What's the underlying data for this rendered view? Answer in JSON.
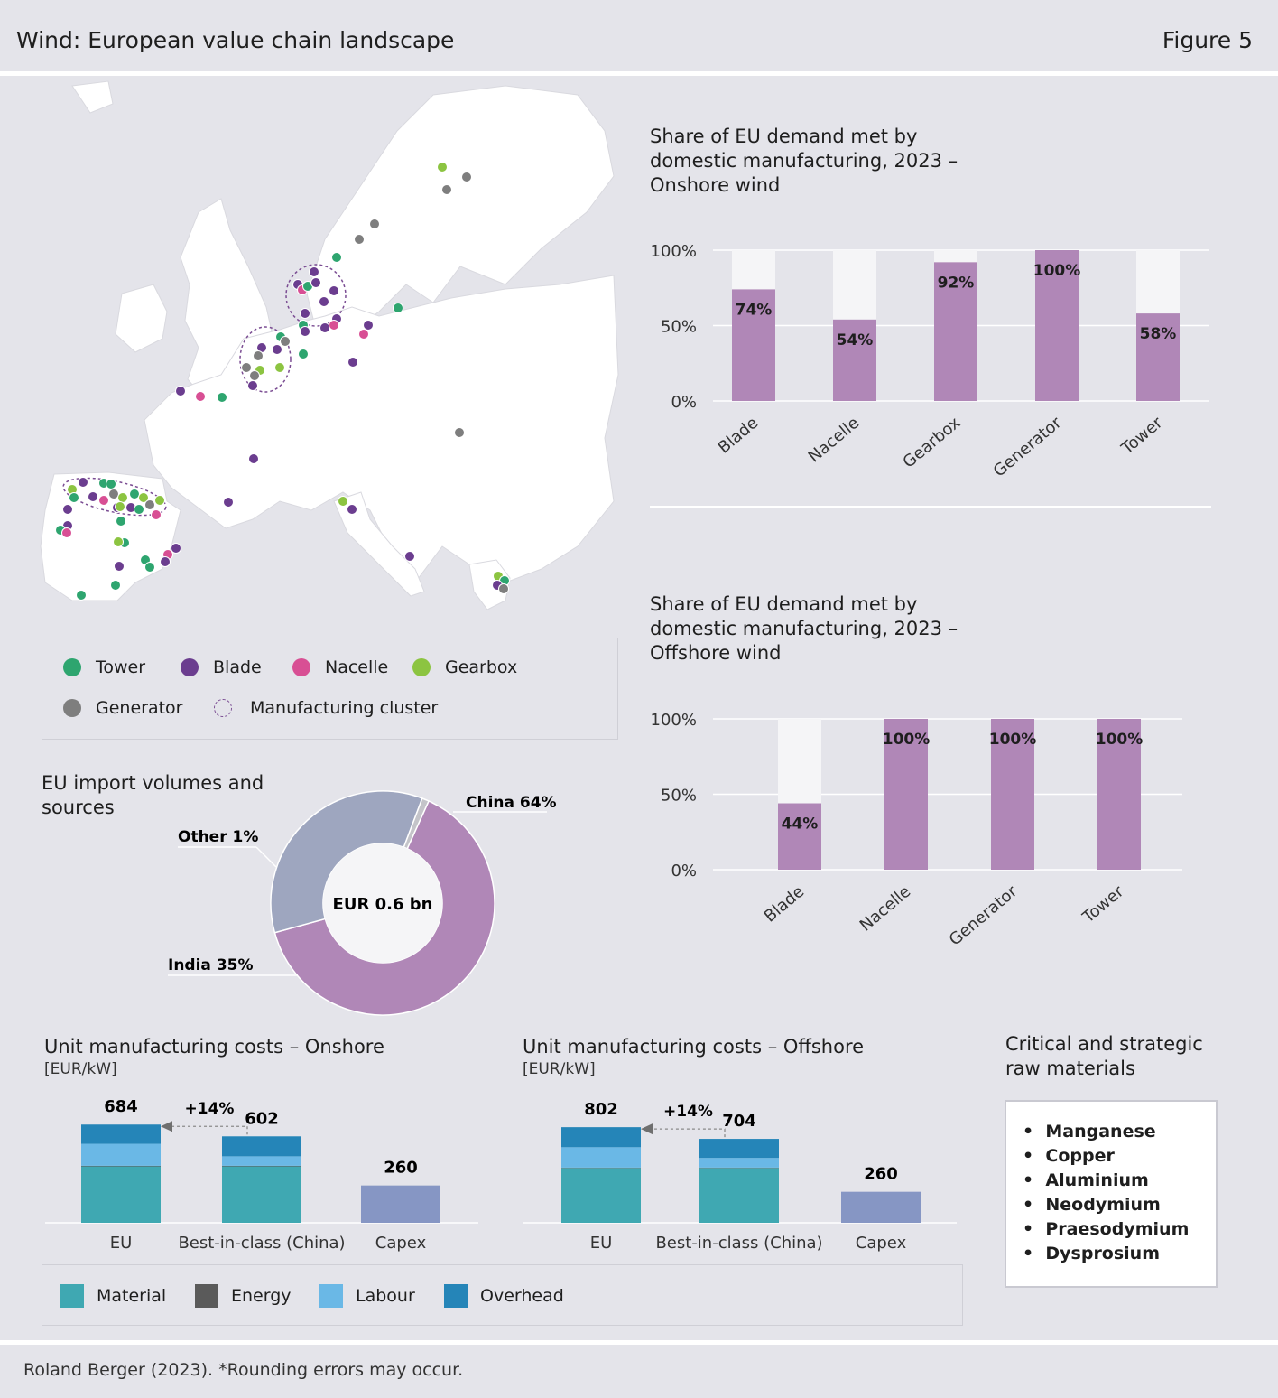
{
  "header": {
    "title": "Wind: European value chain landscape",
    "figure": "Figure 5"
  },
  "map_legend": {
    "tower": "Tower",
    "blade": "Blade",
    "nacelle": "Nacelle",
    "gearbox": "Gearbox",
    "generator": "Generator",
    "cluster": "Manufacturing cluster"
  },
  "colors": {
    "tower": "#2ea56f",
    "blade": "#6b3d8f",
    "nacelle": "#d84f94",
    "gearbox": "#8cc441",
    "generator": "#7e7e7e",
    "share": "#b087b7",
    "share_rest": "#f5f5f7",
    "china": "#b087b7",
    "india": "#9ea6bf",
    "other": "#c4c4c9",
    "material": "#3fa8b2",
    "energy": "#5a5a5a",
    "labour": "#6ab8e6",
    "overhead": "#2585b8",
    "capex": "#8696c4"
  },
  "chart_data": [
    {
      "type": "bar",
      "title": "Share of EU demand met by domestic manufacturing, 2023 – Onshore wind",
      "categories": [
        "Blade",
        "Nacelle",
        "Gearbox",
        "Generator",
        "Tower"
      ],
      "values": [
        74,
        54,
        92,
        100,
        58
      ],
      "value_labels": [
        "74%",
        "54%",
        "92%",
        "100%",
        "58%"
      ],
      "yticks": [
        "0%",
        "50%",
        "100%"
      ],
      "ylim": [
        0,
        100
      ]
    },
    {
      "type": "bar",
      "title": "Share of EU demand met by domestic manufacturing, 2023 – Offshore wind",
      "categories": [
        "Blade",
        "Nacelle",
        "Generator",
        "Tower"
      ],
      "values": [
        44,
        100,
        100,
        100
      ],
      "value_labels": [
        "44%",
        "100%",
        "100%",
        "100%"
      ],
      "yticks": [
        "0%",
        "50%",
        "100%"
      ],
      "ylim": [
        0,
        100
      ]
    },
    {
      "type": "pie",
      "title": "EU import volumes and sources",
      "center_label": "EUR 0.6 bn",
      "slices": [
        {
          "name": "China",
          "value": 64,
          "label": "China 64%"
        },
        {
          "name": "India",
          "value": 35,
          "label": "India 35%"
        },
        {
          "name": "Other",
          "value": 1,
          "label": "Other 1%"
        }
      ]
    },
    {
      "type": "bar",
      "title": "Unit manufacturing costs – Onshore",
      "unit": "[EUR/kW]",
      "categories": [
        "EU",
        "Best-in-class (China)",
        "Capex"
      ],
      "totals": [
        684,
        602,
        260
      ],
      "series": [
        {
          "name": "Material",
          "values": [
            393,
            393,
            0
          ]
        },
        {
          "name": "Energy",
          "values": [
            4,
            4,
            0
          ]
        },
        {
          "name": "Labour",
          "values": [
            153,
            66,
            0
          ]
        },
        {
          "name": "Overhead",
          "values": [
            134,
            139,
            0
          ]
        },
        {
          "name": "Capex",
          "values": [
            0,
            0,
            260
          ]
        }
      ],
      "delta_label": "+14%"
    },
    {
      "type": "bar",
      "title": "Unit manufacturing costs – Offshore",
      "unit": "[EUR/kW]",
      "categories": [
        "EU",
        "Best-in-class (China)",
        "Capex"
      ],
      "totals": [
        802,
        704,
        260
      ],
      "series": [
        {
          "name": "Material",
          "values": [
            460,
            460,
            0
          ]
        },
        {
          "name": "Energy",
          "values": [
            3,
            3,
            0
          ]
        },
        {
          "name": "Labour",
          "values": [
            171,
            81,
            0
          ]
        },
        {
          "name": "Overhead",
          "values": [
            168,
            160,
            0
          ]
        },
        {
          "name": "Capex",
          "values": [
            0,
            0,
            260
          ]
        }
      ],
      "delta_label": "+14%"
    }
  ],
  "cost_legend": {
    "material": "Material",
    "energy": "Energy",
    "labour": "Labour",
    "overhead": "Overhead"
  },
  "raw_materials": {
    "title_line1": "Critical and strategic",
    "title_line2": "raw materials",
    "items": [
      "Manganese",
      "Copper",
      "Aluminium",
      "Neodymium",
      "Praesodymium",
      "Dysprosium"
    ]
  },
  "footer": "Roland Berger (2023). *Rounding errors may occur."
}
